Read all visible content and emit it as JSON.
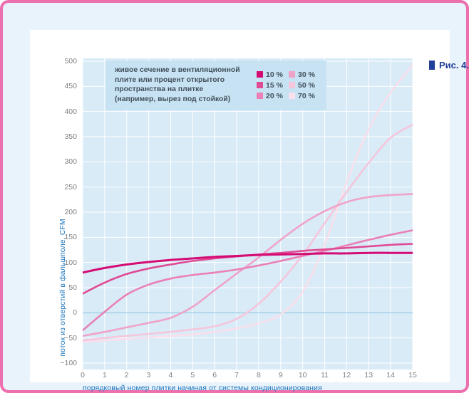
{
  "figure": {
    "label": "Рис. 4."
  },
  "legend": {
    "description_lines": [
      "живое сечение в вентиляционной",
      "плите или процент открытого",
      "пространства на плитке",
      "(например, вырез под стойкой)"
    ]
  },
  "colors": {
    "frame_border": "#ec6fae",
    "page_band": "#e9f3fb",
    "panel": "#ffffff",
    "plot_background": "#d8ebf7",
    "legend_background": "#c7e2f2",
    "gridline": "#ffffff",
    "zero_line": "#a7d3eb",
    "tick_text": "#808184",
    "axis_title": "#1b75bc",
    "figure_label": "#21409a",
    "legend_text": "#42505c"
  },
  "chart_data": {
    "type": "line",
    "title": "",
    "xlabel": "порядковый номер плитки начиная от системы кондиционирования",
    "ylabel": "поток из отверстий в фальшполе, CFM",
    "xlim": [
      0,
      15
    ],
    "ylim": [
      -100,
      500
    ],
    "grid": true,
    "legend_position": "top-left-inside",
    "x": [
      0,
      1,
      2,
      3,
      4,
      5,
      6,
      7,
      8,
      9,
      10,
      11,
      12,
      13,
      14,
      15
    ],
    "x_tick_labels": [
      "0",
      "1",
      "2",
      "3",
      "4",
      "5",
      "6",
      "7",
      "8",
      "9",
      "10",
      "11",
      "12",
      "13",
      "14",
      "15"
    ],
    "y_tick_values": [
      500,
      450,
      400,
      350,
      300,
      250,
      200,
      150,
      100,
      50,
      0,
      -50,
      -100
    ],
    "y_tick_labels": [
      "500",
      "450",
      "400",
      "350",
      "300",
      "250",
      "200",
      "150",
      "100",
      "50",
      "0",
      "−50",
      "−100"
    ],
    "series": [
      {
        "name": "10 %",
        "color": "#d50b74",
        "width": 3,
        "values": [
          80,
          89,
          96,
          101,
          105,
          108,
          111,
          113,
          115,
          116,
          117,
          118,
          118,
          119,
          119,
          119
        ]
      },
      {
        "name": "15 %",
        "color": "#e04a95",
        "width": 2.6,
        "values": [
          38,
          60,
          77,
          88,
          96,
          103,
          108,
          112,
          116,
          119,
          123,
          126,
          129,
          132,
          135,
          137
        ]
      },
      {
        "name": "20 %",
        "color": "#ea80b5",
        "width": 2.6,
        "values": [
          -35,
          2,
          36,
          56,
          68,
          75,
          80,
          86,
          94,
          103,
          113,
          123,
          134,
          145,
          155,
          164
        ]
      },
      {
        "name": "30 %",
        "color": "#efa3c9",
        "width": 2.6,
        "values": [
          -46,
          -38,
          -29,
          -20,
          -10,
          12,
          45,
          78,
          110,
          145,
          177,
          202,
          220,
          230,
          234,
          236
        ]
      },
      {
        "name": "50 %",
        "color": "#f6c6dc",
        "width": 2.6,
        "values": [
          -55,
          -50,
          -46,
          -42,
          -38,
          -33,
          -27,
          -12,
          18,
          62,
          115,
          178,
          240,
          298,
          348,
          374
        ]
      },
      {
        "name": "70 %",
        "color": "#fadfec",
        "width": 2.6,
        "values": [
          -58,
          -55,
          -52,
          -49,
          -46,
          -43,
          -38,
          -31,
          -21,
          -3,
          42,
          135,
          260,
          365,
          438,
          492
        ]
      }
    ]
  }
}
